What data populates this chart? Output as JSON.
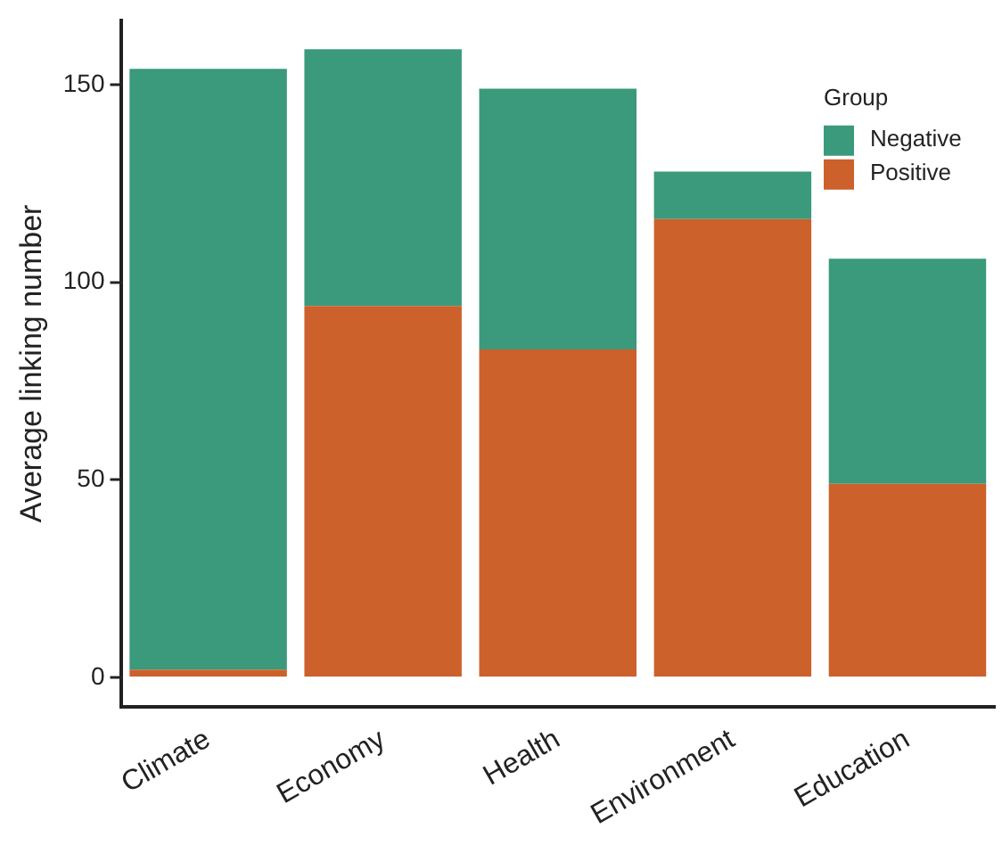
{
  "chart_data": {
    "type": "bar",
    "stacked": true,
    "ylabel": "Average linking number",
    "legend_title": "Group",
    "legend": "top right",
    "grid": false,
    "categories": [
      "Climate",
      "Economy",
      "Health",
      "Environment",
      "Education"
    ],
    "series": [
      {
        "name": "Positive",
        "color": "#cc612b",
        "values": [
          2,
          94,
          83,
          116,
          49
        ]
      },
      {
        "name": "Negative",
        "color": "#3a9a7b",
        "values": [
          152,
          65,
          66,
          12,
          57
        ]
      }
    ],
    "ylim": [
      -7.4,
      166.3
    ],
    "yticks": [
      0,
      50,
      100,
      150
    ]
  }
}
